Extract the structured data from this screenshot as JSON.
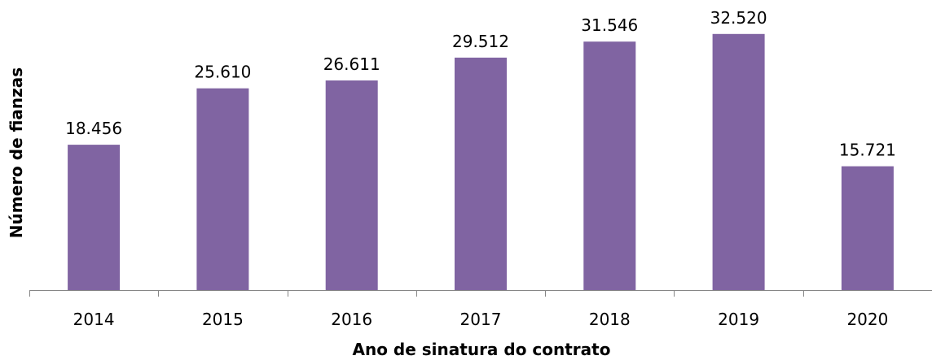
{
  "chart_data": {
    "type": "bar",
    "categories": [
      "2014",
      "2015",
      "2016",
      "2017",
      "2018",
      "2019",
      "2020"
    ],
    "values": [
      18456,
      25610,
      26611,
      29512,
      31546,
      32520,
      15721
    ],
    "value_labels": [
      "18.456",
      "25.610",
      "26.611",
      "29.512",
      "31.546",
      "32.520",
      "15.721"
    ],
    "xlabel": "Ano de sinatura do contrato",
    "ylabel": "Número de  fianzas",
    "ylim": [
      0,
      35000
    ],
    "grid": false,
    "legend": "none",
    "bar_color": "#8064A2"
  }
}
